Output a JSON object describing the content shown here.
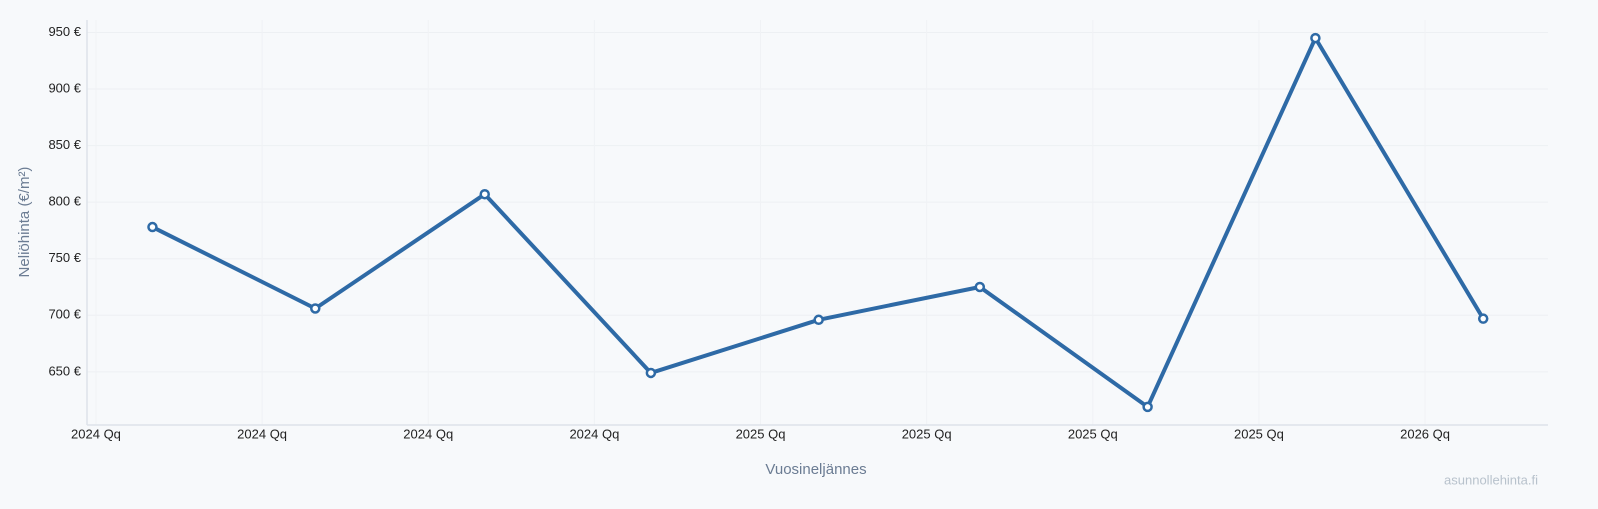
{
  "chart_data": {
    "type": "line",
    "x_label": "Vuosineljännes",
    "y_label": "Neliöhinta (€/m²)",
    "watermark": "asunnollehinta.fi",
    "x": [
      0.34,
      1.32,
      2.34,
      3.34,
      4.35,
      5.32,
      6.33,
      7.34,
      8.35
    ],
    "series": [
      {
        "name": "Neliöhinta",
        "color": "#2e6aa6",
        "values": [
          778,
          706,
          807,
          649,
          696,
          725,
          619,
          945,
          697
        ]
      }
    ],
    "xlim": [
      -0.054,
      8.74
    ],
    "xticks": [
      {
        "value": 0,
        "label": "2024 Qq"
      },
      {
        "value": 1,
        "label": "2024 Qq"
      },
      {
        "value": 2,
        "label": "2024 Qq"
      },
      {
        "value": 3,
        "label": "2024 Qq"
      },
      {
        "value": 4,
        "label": "2025 Qq"
      },
      {
        "value": 5,
        "label": "2025 Qq"
      },
      {
        "value": 6,
        "label": "2025 Qq"
      },
      {
        "value": 7,
        "label": "2025 Qq"
      },
      {
        "value": 8,
        "label": "2026 Qq"
      }
    ],
    "ylim": [
      603,
      961
    ],
    "yticks": [
      {
        "value": 650,
        "label": "650 €"
      },
      {
        "value": 700,
        "label": "700 €"
      },
      {
        "value": 750,
        "label": "750 €"
      },
      {
        "value": 800,
        "label": "800 €"
      },
      {
        "value": 850,
        "label": "850 €"
      },
      {
        "value": 900,
        "label": "900 €"
      },
      {
        "value": 950,
        "label": "950 €"
      }
    ],
    "grid": true
  }
}
